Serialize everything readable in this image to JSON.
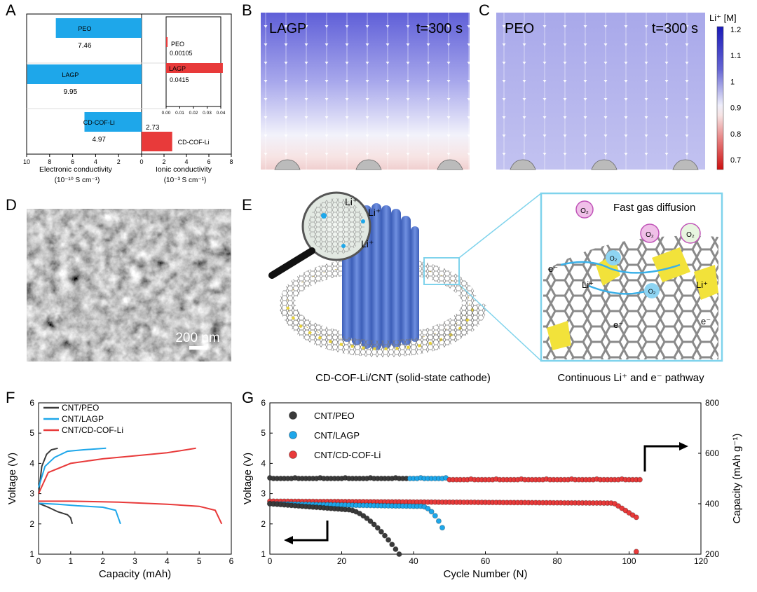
{
  "panel_letters": {
    "A": "A",
    "B": "B",
    "C": "C",
    "D": "D",
    "E": "E",
    "F": "F",
    "G": "G"
  },
  "panelA": {
    "xlabel_left": "Electronic conductivity",
    "xunit_left": "(10⁻¹⁰ S cm⁻¹)",
    "xlabel_right": "Ionic conductivity",
    "xunit_right": "(10⁻³ S cm⁻¹)",
    "xticks_left": [
      "10",
      "8",
      "6",
      "4",
      "2",
      "0"
    ],
    "xticks_right": [
      "2",
      "4",
      "6",
      "8"
    ],
    "inset_ticks": [
      "0.00",
      "0.01",
      "0.02",
      "0.03",
      "0.04"
    ],
    "colors": {
      "electronic": "#1ea7ea",
      "ionic": "#e83a3a"
    }
  },
  "panelB": {
    "title": "LAGP",
    "time": "t=300 s"
  },
  "panelC": {
    "title": "PEO",
    "time": "t=300 s"
  },
  "colorbar": {
    "label": "Li⁺ [M]",
    "ticks": [
      "1.2",
      "1.1",
      "1",
      "0.9",
      "0.8",
      "0.7"
    ]
  },
  "panelD": {
    "scale": "200 nm"
  },
  "panelE": {
    "caption_left": "CD-COF-Li/CNT (solid-state cathode)",
    "caption_right": "Continuous Li⁺ and e⁻ pathway",
    "fast_gas": "Fast gas diffusion",
    "li": "Li⁺",
    "o2": "O₂",
    "e": "e⁻"
  },
  "chart_data": [
    {
      "type": "bar",
      "panel": "A",
      "categories": [
        "PEO",
        "LAGP",
        "CD-COF-Li"
      ],
      "series": [
        {
          "name": "Electronic conductivity",
          "values": [
            7.46,
            9.95,
            4.97
          ],
          "labels": [
            "7.46",
            "9.95",
            "4.97"
          ]
        },
        {
          "name": "Ionic conductivity",
          "values": [
            0.00105,
            0.0415,
            2.73
          ],
          "labels": [
            "0.00105",
            "0.0415",
            "2.73"
          ]
        }
      ],
      "xlim_left": [
        10,
        0
      ],
      "xlim_right": [
        0,
        8
      ],
      "inset_xlim": [
        0,
        0.04
      ]
    },
    {
      "type": "line",
      "panel": "F",
      "xlabel": "Capacity (mAh)",
      "ylabel": "Voltage (V)",
      "xlim": [
        0,
        6
      ],
      "ylim": [
        1,
        6
      ],
      "xticks": [
        "0",
        "1",
        "2",
        "3",
        "4",
        "5",
        "6"
      ],
      "yticks": [
        "1",
        "2",
        "3",
        "4",
        "5",
        "6"
      ],
      "series": [
        {
          "name": "CNT/PEO",
          "color": "#3a3a3a",
          "charge": [
            [
              0,
              3.0
            ],
            [
              0.1,
              3.9
            ],
            [
              0.25,
              4.3
            ],
            [
              0.4,
              4.45
            ],
            [
              0.6,
              4.5
            ]
          ],
          "discharge": [
            [
              0,
              2.68
            ],
            [
              0.3,
              2.55
            ],
            [
              0.6,
              2.4
            ],
            [
              0.9,
              2.3
            ],
            [
              1.0,
              2.2
            ],
            [
              1.05,
              2.0
            ]
          ]
        },
        {
          "name": "CNT/LAGP",
          "color": "#1ea7ea",
          "charge": [
            [
              0,
              3.2
            ],
            [
              0.2,
              3.9
            ],
            [
              0.5,
              4.2
            ],
            [
              0.9,
              4.4
            ],
            [
              1.4,
              4.45
            ],
            [
              2.1,
              4.5
            ]
          ],
          "discharge": [
            [
              0,
              2.68
            ],
            [
              0.6,
              2.65
            ],
            [
              1.2,
              2.6
            ],
            [
              2.0,
              2.55
            ],
            [
              2.4,
              2.45
            ],
            [
              2.55,
              2.0
            ]
          ]
        },
        {
          "name": "CNT/CD-COF-Li",
          "color": "#e83a3a",
          "charge": [
            [
              0,
              3.0
            ],
            [
              0.3,
              3.7
            ],
            [
              1.0,
              4.0
            ],
            [
              2.0,
              4.15
            ],
            [
              3.0,
              4.25
            ],
            [
              4.0,
              4.35
            ],
            [
              4.9,
              4.5
            ]
          ],
          "discharge": [
            [
              0,
              2.75
            ],
            [
              1.0,
              2.75
            ],
            [
              2.5,
              2.72
            ],
            [
              4.0,
              2.65
            ],
            [
              5.0,
              2.58
            ],
            [
              5.5,
              2.45
            ],
            [
              5.7,
              2.0
            ]
          ]
        }
      ]
    },
    {
      "type": "scatter",
      "panel": "G",
      "xlabel": "Cycle Number (N)",
      "ylabel": "Voltage (V)",
      "ylabel_right": "Capacity (mAh g⁻¹)",
      "xlim": [
        0,
        120
      ],
      "ylim": [
        1,
        6
      ],
      "ylim_right": [
        200,
        800
      ],
      "xticks": [
        "0",
        "20",
        "40",
        "60",
        "80",
        "100",
        "120"
      ],
      "yticks": [
        "1",
        "2",
        "3",
        "4",
        "5",
        "6"
      ],
      "yticks_right": [
        "200",
        "400",
        "600",
        "800"
      ],
      "series": [
        {
          "name": "CNT/PEO",
          "color": "#3a3a3a",
          "voltage_end": 38,
          "capacity_end": 36
        },
        {
          "name": "CNT/LAGP",
          "color": "#1ea7ea",
          "voltage_end": 49,
          "capacity_end": 48
        },
        {
          "name": "CNT/CD-COF-Li",
          "color": "#e83a3a",
          "voltage_end": 103,
          "capacity_end": 102
        }
      ]
    }
  ]
}
